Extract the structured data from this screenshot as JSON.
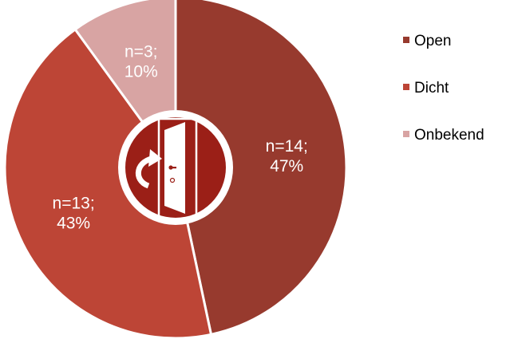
{
  "chart_data": {
    "type": "pie",
    "categories": [
      "Open",
      "Dicht",
      "Onbekend"
    ],
    "values": [
      14,
      13,
      3
    ],
    "percentages": [
      47,
      43,
      10
    ],
    "data_labels": [
      [
        "n=14;",
        "47%"
      ],
      [
        "n=13;",
        "43%"
      ],
      [
        "n=3;",
        "10%"
      ]
    ],
    "colors": [
      "#973a2e",
      "#bd4536",
      "#d8a4a3"
    ],
    "legend_position": "right",
    "center_icon": "open-door-icon"
  }
}
